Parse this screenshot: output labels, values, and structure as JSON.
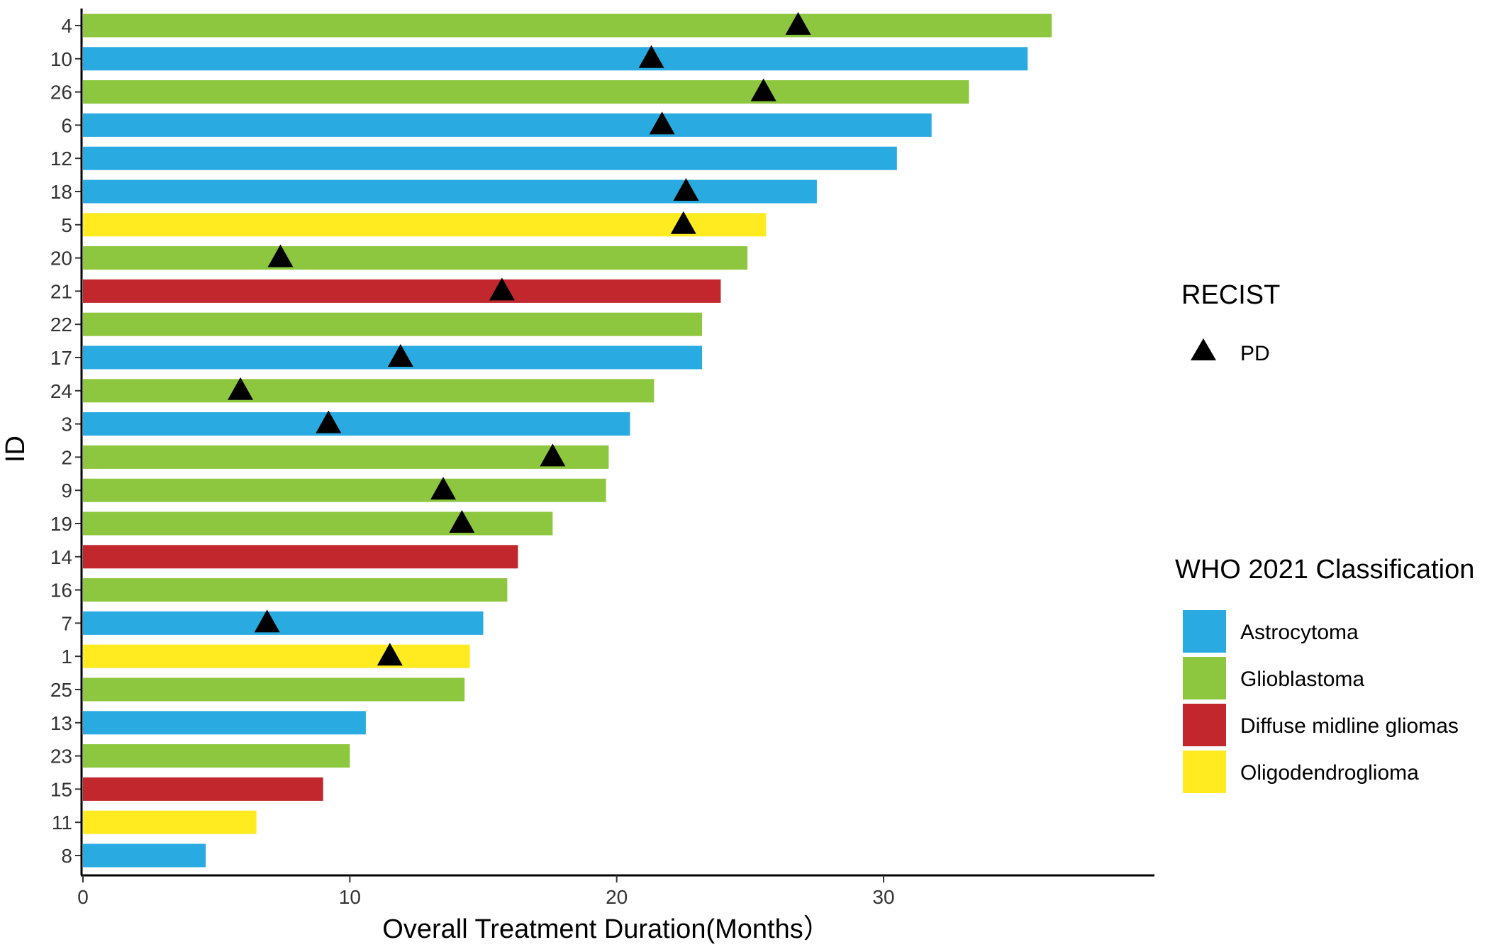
{
  "chart_data": {
    "type": "bar",
    "orientation": "horizontal",
    "xlabel": "Overall Treatment Duration(Months）",
    "ylabel": "ID",
    "xlim": [
      0,
      40
    ],
    "xticks": [
      0,
      10,
      20,
      30
    ],
    "grid": false,
    "categories": [
      "4",
      "10",
      "26",
      "6",
      "12",
      "18",
      "5",
      "20",
      "21",
      "22",
      "17",
      "24",
      "3",
      "2",
      "9",
      "19",
      "14",
      "16",
      "7",
      "1",
      "25",
      "13",
      "23",
      "15",
      "11",
      "8"
    ],
    "values": [
      36.3,
      35.4,
      33.2,
      31.8,
      30.5,
      27.5,
      25.6,
      24.9,
      23.9,
      23.2,
      23.2,
      21.4,
      20.5,
      19.7,
      19.6,
      17.6,
      16.3,
      15.9,
      15.0,
      14.5,
      14.3,
      10.6,
      10.0,
      9.0,
      6.5,
      4.6
    ],
    "classification": [
      "Glioblastoma",
      "Astrocytoma",
      "Glioblastoma",
      "Astrocytoma",
      "Astrocytoma",
      "Astrocytoma",
      "Oligodendroglioma",
      "Glioblastoma",
      "Diffuse midline gliomas",
      "Glioblastoma",
      "Astrocytoma",
      "Glioblastoma",
      "Astrocytoma",
      "Glioblastoma",
      "Glioblastoma",
      "Glioblastoma",
      "Diffuse midline gliomas",
      "Glioblastoma",
      "Astrocytoma",
      "Oligodendroglioma",
      "Glioblastoma",
      "Astrocytoma",
      "Glioblastoma",
      "Diffuse midline gliomas",
      "Oligodendroglioma",
      "Astrocytoma"
    ],
    "pd_markers": [
      {
        "id": "4",
        "x": 26.8
      },
      {
        "id": "10",
        "x": 21.3
      },
      {
        "id": "26",
        "x": 25.5
      },
      {
        "id": "6",
        "x": 21.7
      },
      {
        "id": "18",
        "x": 22.6
      },
      {
        "id": "5",
        "x": 22.5
      },
      {
        "id": "20",
        "x": 7.4
      },
      {
        "id": "21",
        "x": 15.7
      },
      {
        "id": "17",
        "x": 11.9
      },
      {
        "id": "24",
        "x": 5.9
      },
      {
        "id": "3",
        "x": 9.2
      },
      {
        "id": "2",
        "x": 17.6
      },
      {
        "id": "9",
        "x": 13.5
      },
      {
        "id": "19",
        "x": 14.2
      },
      {
        "id": "7",
        "x": 6.9
      },
      {
        "id": "1",
        "x": 11.5
      }
    ],
    "legend": {
      "placement": "right",
      "recist": {
        "title": "RECIST",
        "label": "PD"
      },
      "who": {
        "title": "WHO 2021 Classification",
        "items": [
          {
            "name": "Astrocytoma",
            "color": "#29ABE2"
          },
          {
            "name": "Glioblastoma",
            "color": "#8DC63F"
          },
          {
            "name": "Diffuse midline gliomas",
            "color": "#C1272D"
          },
          {
            "name": "Oligodendroglioma",
            "color": "#FFEB1F"
          }
        ]
      }
    }
  }
}
